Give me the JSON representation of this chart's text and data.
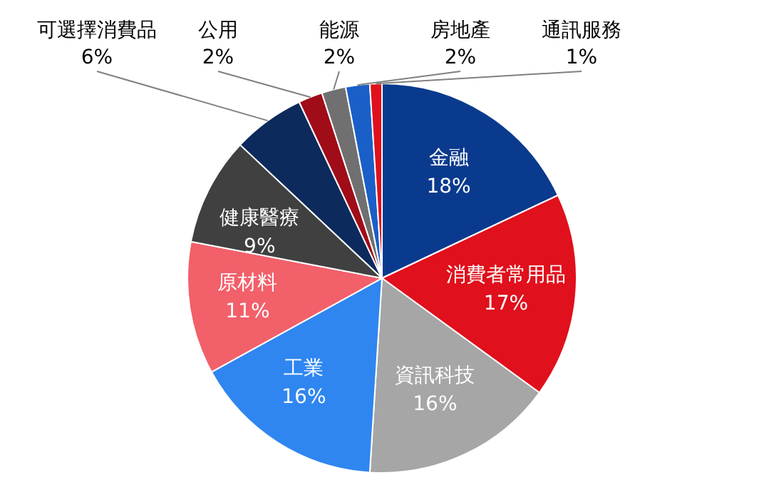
{
  "chart_data": {
    "type": "pie",
    "categories": [
      "金融",
      "消費者常用品",
      "資訊科技",
      "工業",
      "原材料",
      "健康醫療",
      "可選擇消費品",
      "公用",
      "能源",
      "房地產",
      "通訊服務"
    ],
    "values": [
      18,
      17,
      16,
      16,
      11,
      9,
      6,
      2,
      2,
      2,
      1
    ],
    "value_labels": [
      "18%",
      "17%",
      "16%",
      "16%",
      "11%",
      "9%",
      "6%",
      "2%",
      "2%",
      "2%",
      "1%"
    ],
    "colors": [
      "#0a3a8e",
      "#e0101c",
      "#a6a6a6",
      "#2f86f0",
      "#f2606a",
      "#404040",
      "#0c2a5c",
      "#a00c18",
      "#707070",
      "#1a5fc8",
      "#e0101c"
    ],
    "legend": false
  }
}
